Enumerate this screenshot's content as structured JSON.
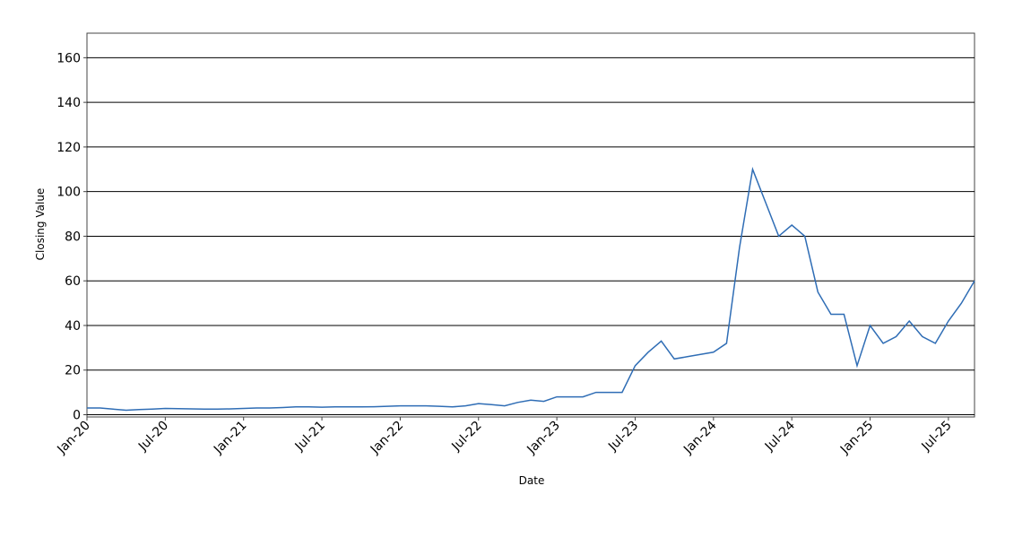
{
  "chart_data": {
    "type": "line",
    "x_label": "Date",
    "y_label": "Closing Value",
    "x": [
      "2020-01",
      "2020-02",
      "2020-03",
      "2020-04",
      "2020-05",
      "2020-06",
      "2020-07",
      "2020-08",
      "2020-09",
      "2020-10",
      "2020-11",
      "2020-12",
      "2021-01",
      "2021-02",
      "2021-03",
      "2021-04",
      "2021-05",
      "2021-06",
      "2021-07",
      "2021-08",
      "2021-09",
      "2021-10",
      "2021-11",
      "2021-12",
      "2022-01",
      "2022-02",
      "2022-03",
      "2022-04",
      "2022-05",
      "2022-06",
      "2022-07",
      "2022-08",
      "2022-09",
      "2022-10",
      "2022-11",
      "2022-12",
      "2023-01",
      "2023-02",
      "2023-03",
      "2023-04",
      "2023-05",
      "2023-06",
      "2023-07",
      "2023-08",
      "2023-09",
      "2023-10",
      "2023-11",
      "2023-12",
      "2024-01",
      "2024-02",
      "2024-03",
      "2024-04",
      "2024-05",
      "2024-06",
      "2024-07",
      "2024-08",
      "2024-09",
      "2024-10",
      "2024-11",
      "2024-12",
      "2025-01",
      "2025-02",
      "2025-03",
      "2025-04",
      "2025-05",
      "2025-06",
      "2025-07",
      "2025-08",
      "2025-09"
    ],
    "series": [
      {
        "name": "Closing Value",
        "color": "#2f6db5",
        "values": [
          3,
          3,
          2.5,
          2,
          2.3,
          2.5,
          2.8,
          2.7,
          2.6,
          2.5,
          2.5,
          2.6,
          2.8,
          3,
          3,
          3.2,
          3.5,
          3.5,
          3.4,
          3.5,
          3.5,
          3.5,
          3.6,
          3.8,
          4,
          4,
          4,
          3.8,
          3.5,
          4,
          5,
          4.5,
          4,
          5.5,
          6.5,
          6,
          8,
          8,
          8,
          10,
          10,
          10,
          22,
          28,
          33,
          25,
          26,
          27,
          28,
          32,
          75,
          110,
          95,
          80,
          85,
          80,
          55,
          45,
          45,
          22,
          40,
          32,
          35,
          42,
          35,
          32,
          42,
          50,
          60
        ]
      }
    ],
    "xlim": [
      "2020-01",
      "2025-09"
    ],
    "xticks": [
      {
        "value": "2020-01",
        "label": "Jan-20"
      },
      {
        "value": "2020-07",
        "label": "Jul-20"
      },
      {
        "value": "2021-01",
        "label": "Jan-21"
      },
      {
        "value": "2021-07",
        "label": "Jul-21"
      },
      {
        "value": "2022-01",
        "label": "Jan-22"
      },
      {
        "value": "2022-07",
        "label": "Jul-22"
      },
      {
        "value": "2023-01",
        "label": "Jan-23"
      },
      {
        "value": "2023-07",
        "label": "Jul-23"
      },
      {
        "value": "2024-01",
        "label": "Jan-24"
      },
      {
        "value": "2024-07",
        "label": "Jul-24"
      },
      {
        "value": "2025-01",
        "label": "Jan-25"
      },
      {
        "value": "2025-07",
        "label": "Jul-25"
      }
    ],
    "ylim": [
      -1,
      171
    ],
    "yticks": [
      0,
      20,
      40,
      60,
      80,
      100,
      120,
      140,
      160
    ],
    "grid": true
  }
}
